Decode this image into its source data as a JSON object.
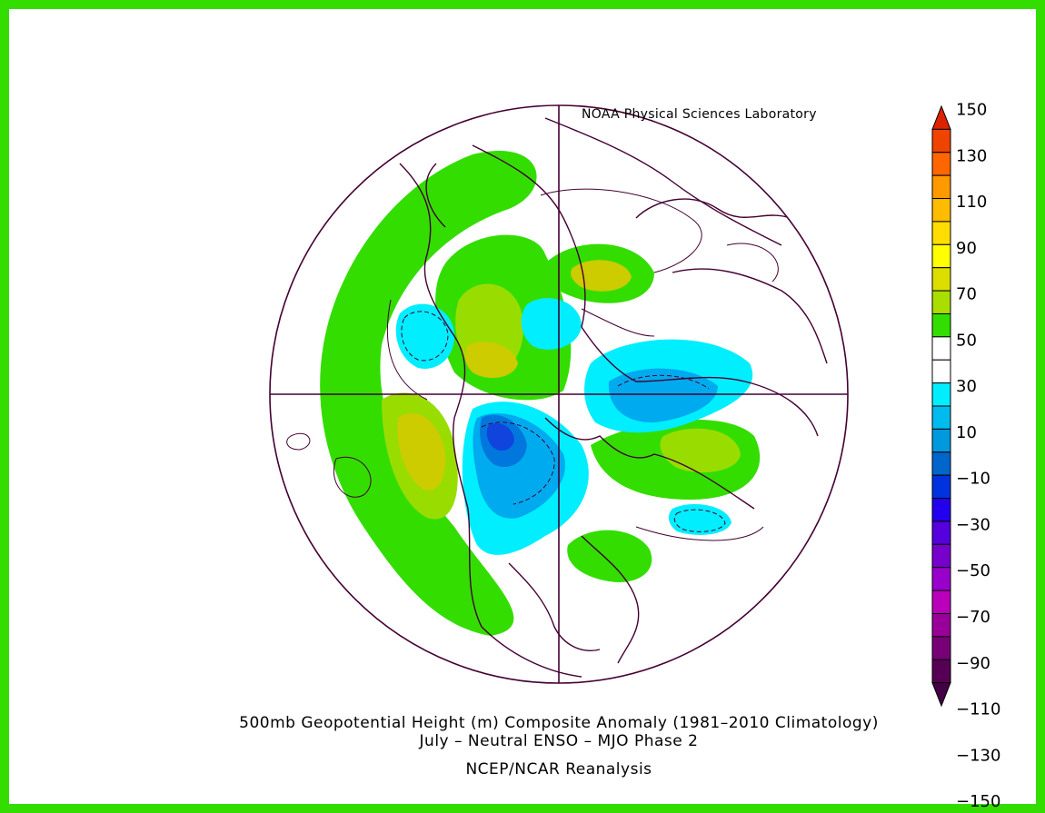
{
  "credit": "NOAA Physical Sciences Laboratory",
  "titles": {
    "line1": "500mb Geopotential Height (m) Composite Anomaly (1981–2010 Climatology)",
    "line2": "July – Neutral ENSO – MJO Phase 2",
    "line3": "NCEP/NCAR Reanalysis"
  },
  "colorbar": {
    "levels": [
      150,
      130,
      110,
      90,
      70,
      50,
      30,
      10,
      -10,
      -30,
      -50,
      -70,
      -90,
      -110,
      -130,
      -150
    ],
    "labels": [
      "150",
      "130",
      "110",
      "90",
      "70",
      "50",
      "30",
      "10",
      "−10",
      "−30",
      "−50",
      "−70",
      "−90",
      "−110",
      "−130",
      "−150"
    ],
    "colors": [
      "#dd2200",
      "#ee4400",
      "#ff6600",
      "#ff9900",
      "#ffbb00",
      "#ffdd00",
      "#ffff00",
      "#dddd00",
      "#aadd00",
      "#33dd00",
      "#ffffff",
      "#ffffff",
      "#00eeff",
      "#00bbee",
      "#0099dd",
      "#0066cc",
      "#0033dd",
      "#2200ee",
      "#5500dd",
      "#7700cc",
      "#9900cc",
      "#bb00bb",
      "#990099",
      "#770077",
      "#550055",
      "#440044"
    ]
  },
  "map_colors": {
    "land_line": "#440033",
    "pos10": "#33dd00",
    "pos30": "#99dd00",
    "pos50": "#cccc00",
    "neg10": "#00eeff",
    "neg30": "#00aaee",
    "neg50": "#0077dd",
    "neg70": "#1144dd"
  }
}
